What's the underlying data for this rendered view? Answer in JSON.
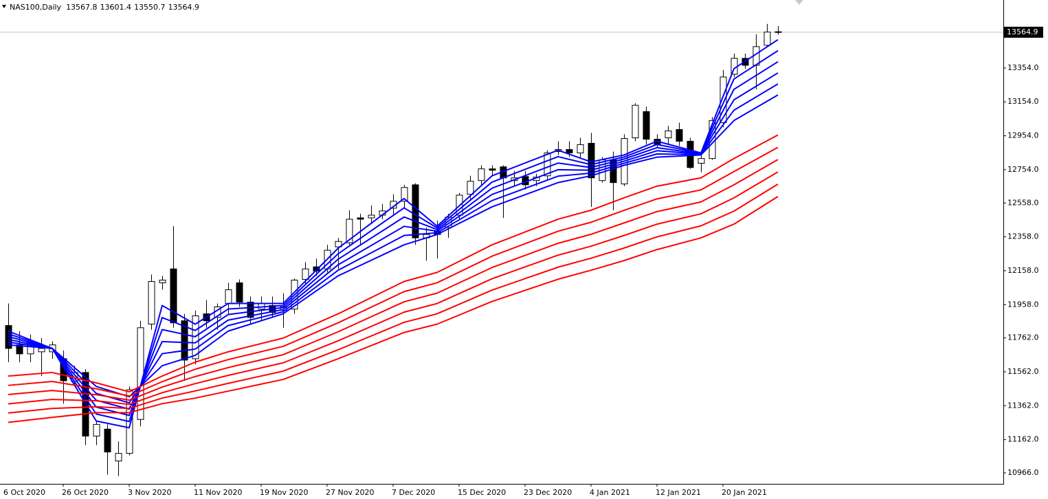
{
  "chart_data": {
    "type": "candlestick",
    "title": "NAS100,Daily",
    "up_color": "#ffffff",
    "down_color": "#000000",
    "ylim": [
      10901,
      13755
    ],
    "yticks": [
      {
        "value": 13354,
        "label": "13354.0"
      },
      {
        "value": 13154,
        "label": "13154.0"
      },
      {
        "value": 12954,
        "label": "12954.0"
      },
      {
        "value": 12754,
        "label": "12754.0"
      },
      {
        "value": 12558,
        "label": "12558.0"
      },
      {
        "value": 12358,
        "label": "12358.0"
      },
      {
        "value": 12158,
        "label": "12158.0"
      },
      {
        "value": 11958,
        "label": "11958.0"
      },
      {
        "value": 11762,
        "label": "11762.0"
      },
      {
        "value": 11562,
        "label": "11562.0"
      },
      {
        "value": 11362,
        "label": "11362.0"
      },
      {
        "value": 11162,
        "label": "11162.0"
      },
      {
        "value": 10966,
        "label": "10966.0"
      }
    ],
    "xticks": [
      {
        "value": -1,
        "label": "6 Oct 2020"
      },
      {
        "value": 5,
        "label": "26 Oct 2020"
      },
      {
        "value": 11,
        "label": "3 Nov 2020"
      },
      {
        "value": 17,
        "label": "11 Nov 2020"
      },
      {
        "value": 23,
        "label": "19 Nov 2020"
      },
      {
        "value": 29,
        "label": "27 Nov 2020"
      },
      {
        "value": 35,
        "label": "7 Dec 2020"
      },
      {
        "value": 41,
        "label": "15 Dec 2020"
      },
      {
        "value": 47,
        "label": "23 Dec 2020"
      },
      {
        "value": 53,
        "label": "4 Jan 2021"
      },
      {
        "value": 59,
        "label": "12 Jan 2021"
      },
      {
        "value": 65,
        "label": "20 Jan 2021"
      }
    ],
    "open": [
      11835,
      11721,
      11668,
      11680,
      11680,
      11639,
      11505,
      11558,
      11183,
      11224,
      11036,
      11081,
      11281,
      11843,
      12087,
      12169,
      11863,
      11639,
      11904,
      11883,
      11965,
      12087,
      11973,
      11932,
      11953,
      11924,
      11932,
      12107,
      12181,
      12169,
      12299,
      12323,
      12470,
      12470,
      12486,
      12527,
      12568,
      12665,
      12352,
      12393,
      12413,
      12486,
      12609,
      12690,
      12759,
      12771,
      12690,
      12714,
      12690,
      12718,
      12861,
      12873,
      12853,
      12910,
      12690,
      12812,
      12670,
      12942,
      13097,
      12934,
      12942,
      12991,
      12922,
      12792,
      12820,
      13032,
      13317,
      13411,
      13370,
      13488,
      13567.8
    ],
    "high": [
      11965,
      11802,
      11782,
      11761,
      11741,
      11688,
      11598,
      11578,
      11272,
      11252,
      11151,
      11476,
      11863,
      12136,
      12128,
      12421,
      11904,
      11924,
      11985,
      11965,
      12087,
      12107,
      12006,
      12006,
      12006,
      12026,
      12112,
      12209,
      12230,
      12311,
      12352,
      12515,
      12494,
      12543,
      12551,
      12609,
      12665,
      12674,
      12413,
      12454,
      12494,
      12617,
      12718,
      12780,
      12780,
      12780,
      12747,
      12747,
      12731,
      12869,
      12922,
      12922,
      12942,
      12971,
      12828,
      12861,
      12963,
      13146,
      13126,
      12963,
      13012,
      13032,
      12942,
      12841,
      13065,
      13342,
      13439,
      13439,
      13553,
      13614,
      13601.4
    ],
    "low": [
      11619,
      11619,
      11619,
      11537,
      11639,
      11374,
      11476,
      11130,
      11130,
      10955,
      10947,
      11069,
      11240,
      11810,
      12046,
      11822,
      11509,
      11606,
      11822,
      11810,
      11904,
      11945,
      11843,
      11863,
      11883,
      11822,
      11904,
      12079,
      12128,
      12148,
      12169,
      12311,
      12311,
      12433,
      12462,
      12486,
      12527,
      12311,
      12217,
      12230,
      12352,
      12454,
      12576,
      12657,
      12718,
      12470,
      12657,
      12637,
      12657,
      12698,
      12841,
      12828,
      12820,
      12535,
      12678,
      12515,
      12657,
      12922,
      12902,
      12881,
      12902,
      12894,
      12759,
      12739,
      12812,
      13004,
      13301,
      13350,
      13228,
      13480,
      13550.7
    ],
    "close": [
      11700,
      11668,
      11733,
      11700,
      11721,
      11509,
      11558,
      11183,
      11252,
      11089,
      11081,
      11456,
      11822,
      12095,
      12103,
      11851,
      11631,
      11892,
      11863,
      11945,
      12046,
      11973,
      11883,
      11965,
      11912,
      11945,
      12103,
      12169,
      12156,
      12279,
      12331,
      12462,
      12462,
      12486,
      12511,
      12568,
      12649,
      12352,
      12372,
      12372,
      12474,
      12604,
      12686,
      12759,
      12751,
      12706,
      12706,
      12665,
      12710,
      12853,
      12873,
      12853,
      12902,
      12706,
      12812,
      12678,
      12938,
      13134,
      12934,
      12902,
      12983,
      12922,
      12767,
      12820,
      13044,
      13301,
      13411,
      13370,
      13480,
      13566,
      13564.9
    ],
    "series": [
      {
        "color": "#0000ff",
        "x": [
          0,
          4,
          8,
          11,
          14,
          17,
          20,
          25,
          30,
          36,
          39,
          44,
          50,
          53,
          56,
          59,
          63,
          66,
          70
        ],
        "values": [
          11802,
          11700,
          11272,
          11232,
          11953,
          11843,
          11965,
          11965,
          12291,
          12584,
          12421,
          12718,
          12869,
          12800,
          12841,
          12922,
          12853,
          13350,
          13521
        ]
      },
      {
        "color": "#0000ff",
        "x": [
          0,
          4,
          8,
          11,
          14,
          17,
          20,
          25,
          30,
          36,
          39,
          44,
          50,
          53,
          56,
          59,
          63,
          66,
          70
        ],
        "values": [
          11786,
          11700,
          11313,
          11269,
          11882,
          11806,
          11932,
          11953,
          12258,
          12529,
          12411,
          12681,
          12831,
          12784,
          12829,
          12903,
          12851,
          13289,
          13456
        ]
      },
      {
        "color": "#0000ff",
        "x": [
          0,
          4,
          8,
          11,
          14,
          17,
          20,
          25,
          30,
          36,
          39,
          44,
          50,
          53,
          56,
          59,
          63,
          66,
          70
        ],
        "values": [
          11770,
          11700,
          11354,
          11305,
          11811,
          11769,
          11900,
          11941,
          12226,
          12475,
          12401,
          12645,
          12793,
          12767,
          12817,
          12884,
          12848,
          13228,
          13391
        ]
      },
      {
        "color": "#0000ff",
        "x": [
          0,
          4,
          8,
          11,
          14,
          17,
          20,
          25,
          30,
          36,
          39,
          44,
          50,
          53,
          56,
          59,
          63,
          66,
          70
        ],
        "values": [
          11753,
          11700,
          11394,
          11342,
          11740,
          11733,
          11867,
          11929,
          12193,
          12420,
          12392,
          12608,
          12754,
          12751,
          12804,
          12866,
          12846,
          13166,
          13325
        ]
      },
      {
        "color": "#0000ff",
        "x": [
          0,
          4,
          8,
          11,
          14,
          17,
          20,
          25,
          30,
          36,
          39,
          44,
          50,
          53,
          56,
          59,
          63,
          66,
          70
        ],
        "values": [
          11737,
          11700,
          11435,
          11379,
          11669,
          11696,
          11835,
          11916,
          12161,
          12366,
          12382,
          12572,
          12716,
          12734,
          12792,
          12847,
          12843,
          13105,
          13260
        ]
      },
      {
        "color": "#0000ff",
        "x": [
          0,
          4,
          8,
          11,
          14,
          17,
          20,
          25,
          30,
          36,
          39,
          44,
          50,
          53,
          56,
          59,
          63,
          66,
          70
        ],
        "values": [
          11721,
          11700,
          11476,
          11415,
          11598,
          11659,
          11802,
          11904,
          12128,
          12311,
          12372,
          12535,
          12678,
          12718,
          12780,
          12828,
          12841,
          13044,
          13195
        ]
      },
      {
        "color": "#ff0000",
        "x": [
          0,
          4,
          8,
          11,
          14,
          17,
          20,
          25,
          30,
          36,
          39,
          44,
          50,
          53,
          56,
          59,
          63,
          66,
          70
        ],
        "values": [
          11537,
          11558,
          11497,
          11444,
          11537,
          11619,
          11680,
          11761,
          11904,
          12095,
          12148,
          12311,
          12462,
          12515,
          12588,
          12657,
          12706,
          12820,
          12959
        ]
      },
      {
        "color": "#ff0000",
        "x": [
          0,
          4,
          8,
          11,
          14,
          17,
          20,
          25,
          30,
          36,
          39,
          44,
          50,
          53,
          56,
          59,
          63,
          66,
          70
        ],
        "values": [
          11482,
          11505,
          11462,
          11419,
          11504,
          11577,
          11634,
          11712,
          11851,
          12035,
          12087,
          12244,
          12391,
          12444,
          12514,
          12582,
          12635,
          12743,
          12886
        ]
      },
      {
        "color": "#ff0000",
        "x": [
          0,
          4,
          8,
          11,
          14,
          17,
          20,
          25,
          30,
          36,
          39,
          44,
          50,
          53,
          56,
          59,
          63,
          66,
          70
        ],
        "values": [
          11428,
          11452,
          11427,
          11395,
          11472,
          11534,
          11587,
          11663,
          11798,
          11975,
          12026,
          12177,
          12320,
          12373,
          12440,
          12507,
          12564,
          12665,
          12814
        ]
      },
      {
        "color": "#ff0000",
        "x": [
          0,
          4,
          8,
          11,
          14,
          17,
          20,
          25,
          30,
          36,
          39,
          44,
          50,
          53,
          56,
          59,
          63,
          66,
          70
        ],
        "values": [
          11373,
          11399,
          11391,
          11370,
          11439,
          11492,
          11541,
          11615,
          11745,
          11914,
          11965,
          12111,
          12250,
          12303,
          12366,
          12433,
          12494,
          12588,
          12741
        ]
      },
      {
        "color": "#ff0000",
        "x": [
          0,
          4,
          8,
          11,
          14,
          17,
          20,
          25,
          30,
          36,
          39,
          44,
          50,
          53,
          56,
          59,
          63,
          66,
          70
        ],
        "values": [
          11319,
          11346,
          11356,
          11346,
          11407,
          11449,
          11494,
          11566,
          11692,
          11854,
          11904,
          12044,
          12179,
          12232,
          12292,
          12358,
          12423,
          12510,
          12669
        ]
      },
      {
        "color": "#ff0000",
        "x": [
          0,
          4,
          8,
          11,
          14,
          17,
          20,
          25,
          30,
          36,
          39,
          44,
          50,
          53,
          56,
          59,
          63,
          66,
          70
        ],
        "values": [
          11264,
          11293,
          11321,
          11321,
          11374,
          11407,
          11448,
          11517,
          11639,
          11794,
          11843,
          11977,
          12108,
          12161,
          12218,
          12283,
          12352,
          12433,
          12596
        ]
      }
    ]
  }
}
